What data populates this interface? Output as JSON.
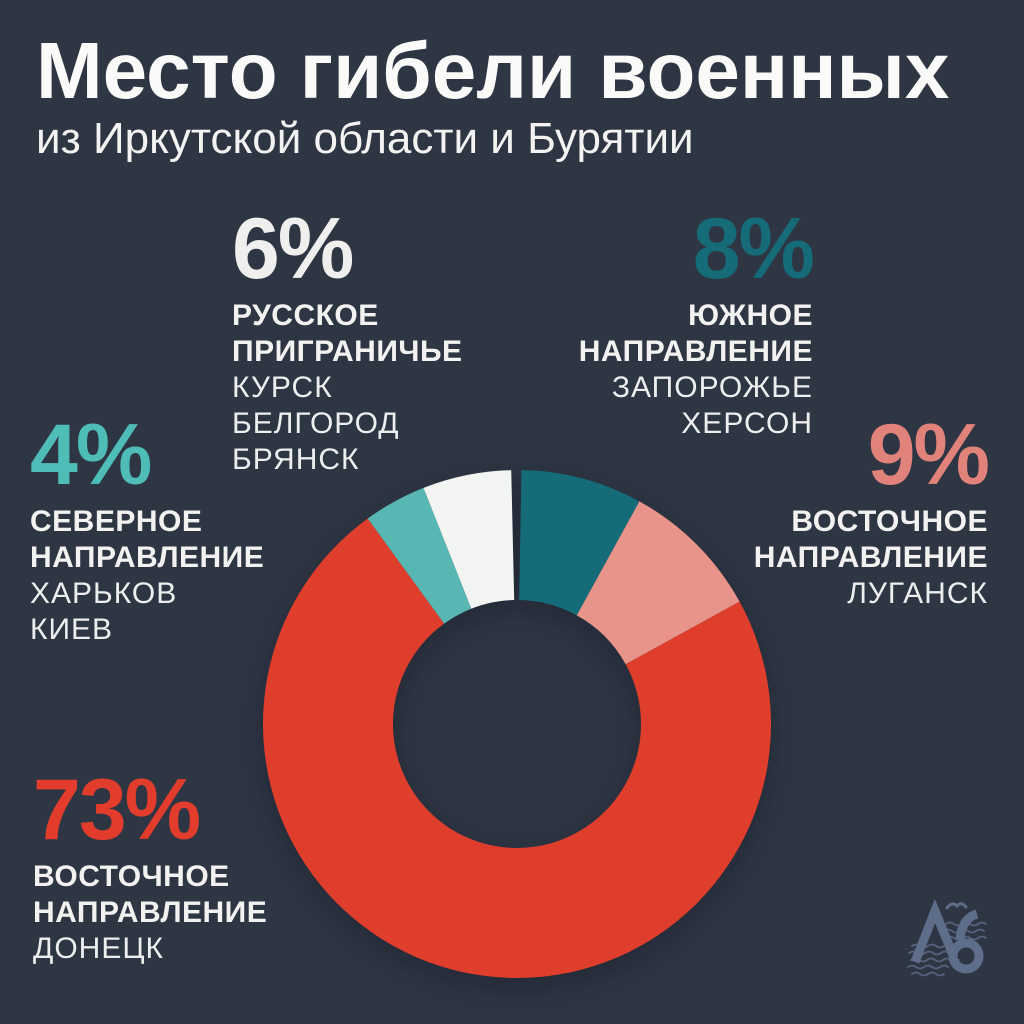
{
  "page": {
    "background": "#2e3543"
  },
  "header": {
    "title": "Место гибели военных",
    "subtitle": "из Иркутской области и Бурятии"
  },
  "callouts": [
    {
      "id": "russian-borderland",
      "percent": "6%",
      "percent_color": "#eff0ee",
      "align": "left",
      "bold": [
        "РУССКОЕ",
        "ПРИГРАНИЧЬЕ"
      ],
      "cities": [
        "КУРСК",
        "БЕЛГОРОД",
        "БРЯНСК"
      ]
    },
    {
      "id": "south-direction",
      "percent": "8%",
      "percent_color": "#156b77",
      "align": "right",
      "bold": [
        "ЮЖНОЕ",
        "НАПРАВЛЕНИЕ"
      ],
      "cities": [
        "ЗАПОРОЖЬЕ",
        "ХЕРСОН"
      ]
    },
    {
      "id": "east-direction-lugansk",
      "percent": "9%",
      "percent_color": "#e2837b",
      "align": "right",
      "bold": [
        "ВОСТОЧНОЕ",
        "НАПРАВЛЕНИЕ"
      ],
      "cities": [
        "ЛУГАНСК"
      ]
    },
    {
      "id": "north-direction",
      "percent": "4%",
      "percent_color": "#4fbdb7",
      "align": "left",
      "bold": [
        "СЕВЕРНОЕ",
        "НАПРАВЛЕНИЕ"
      ],
      "cities": [
        "ХАРЬКОВ",
        "КИЕВ"
      ]
    },
    {
      "id": "east-direction-donetsk",
      "percent": "73%",
      "percent_color": "#e13c2c",
      "align": "left",
      "bold": [
        "ВОСТОЧНОЕ",
        "НАПРАВЛЕНИЕ"
      ],
      "cities": [
        "ДОНЕЦК"
      ]
    }
  ],
  "chart_data": {
    "type": "pie",
    "title": "Место гибели военных из Иркутской области и Бурятии",
    "unit": "percent",
    "direction": "clockwise",
    "start_angle_deg": 0,
    "inner_radius_ratio": 0.49,
    "legend": false,
    "slices": [
      {
        "label": "ЮЖНОЕ НАПРАВЛЕНИЕ (ЗАПОРОЖЬЕ, ХЕРСОН)",
        "value": 8,
        "color": "#156b77",
        "pad_before_deg": 1.0
      },
      {
        "label": "ВОСТОЧНОЕ НАПРАВЛЕНИЕ (ЛУГАНСК)",
        "value": 9,
        "color": "#e8948b"
      },
      {
        "label": "ВОСТОЧНОЕ НАПРАВЛЕНИЕ (ДОНЕЦК)",
        "value": 73,
        "color": "#e03e2d"
      },
      {
        "label": "СЕВЕРНОЕ НАПРАВЛЕНИЕ (ХАРЬКОВ, КИЕВ)",
        "value": 4,
        "color": "#58b6b3"
      },
      {
        "label": "РУССКОЕ ПРИГРАНИЧЬЕ (КУРСК, БЕЛГОРОД, БРЯНСК)",
        "value": 6,
        "color": "#f3f5f2",
        "pad_after_deg": 1.3
      }
    ]
  },
  "logo": {
    "text": "Лб",
    "color": "#61708d"
  }
}
